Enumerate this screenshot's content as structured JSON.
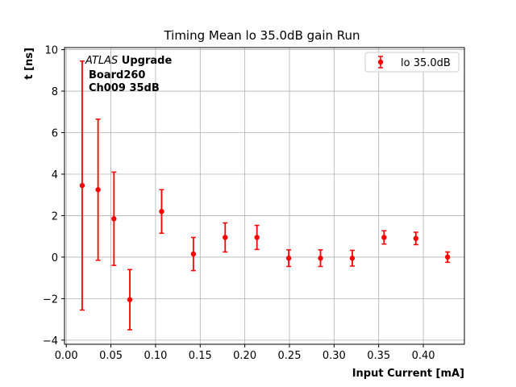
{
  "chart_data": {
    "type": "scatter",
    "title": "Timing Mean lo 35.0dB gain Run",
    "xlabel": "Input Current [mA]",
    "ylabel": "t [ns]",
    "xlim": [
      -0.002,
      0.446
    ],
    "ylim": [
      -4.2,
      10.1
    ],
    "x_ticks": [
      0.0,
      0.05,
      0.1,
      0.15,
      0.2,
      0.25,
      0.3,
      0.35,
      0.4
    ],
    "x_tick_labels": [
      "0.00",
      "0.05",
      "0.10",
      "0.15",
      "0.20",
      "0.25",
      "0.30",
      "0.35",
      "0.40"
    ],
    "y_ticks": [
      -4,
      -2,
      0,
      2,
      4,
      6,
      8,
      10
    ],
    "y_tick_labels": [
      "−4",
      "−2",
      "0",
      "2",
      "4",
      "6",
      "8",
      "10"
    ],
    "grid": true,
    "legend_position": "top-right",
    "annotations": {
      "experiment_italic": "ATLAS",
      "experiment_bold": " Upgrade",
      "line2": "Board260",
      "line3": "Ch009 35dB"
    },
    "series": [
      {
        "name": "lo 35.0dB",
        "color": "#ff0000",
        "marker": "circle",
        "x": [
          0.0178,
          0.0356,
          0.0534,
          0.0712,
          0.1068,
          0.1424,
          0.178,
          0.2136,
          0.2492,
          0.2848,
          0.3204,
          0.356,
          0.3916,
          0.4272
        ],
        "y": [
          3.45,
          3.25,
          1.85,
          -2.05,
          2.2,
          0.15,
          0.95,
          0.95,
          -0.05,
          -0.05,
          -0.05,
          0.95,
          0.9,
          0.0
        ],
        "yerr": [
          6.0,
          3.4,
          2.25,
          1.45,
          1.05,
          0.8,
          0.7,
          0.58,
          0.4,
          0.4,
          0.38,
          0.32,
          0.3,
          0.25
        ]
      }
    ]
  }
}
